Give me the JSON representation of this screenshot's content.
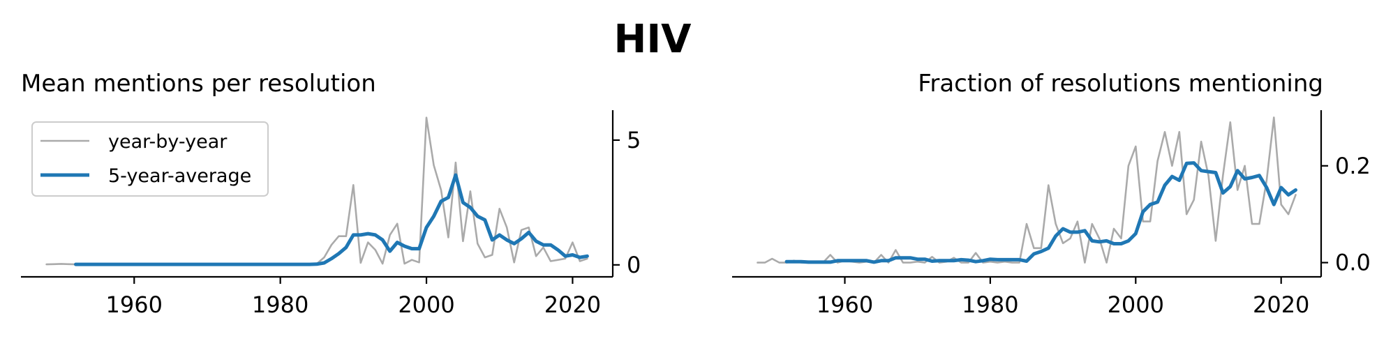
{
  "suptitle": "HIV",
  "colors": {
    "raw": "#aaaaaa",
    "avg": "#1f77b4"
  },
  "legend": {
    "raw_label": "year-by-year",
    "avg_label": "5-year-average",
    "placement": "upper-left"
  },
  "chart_data": [
    {
      "type": "line",
      "title": "Mean mentions per resolution",
      "xlabel": "",
      "ylabel": "",
      "xlim": [
        1944.5,
        2025.5
      ],
      "ylim": [
        -0.2,
        6.2
      ],
      "y_axis_side": "right",
      "xticks": [
        1960,
        1980,
        2000,
        2020
      ],
      "xtick_labels": [
        "1960",
        "1980",
        "2000",
        "2020"
      ],
      "yticks": [
        0,
        5
      ],
      "ytick_labels": [
        "0",
        "5"
      ],
      "series": [
        {
          "key": "raw",
          "name": "year-by-year",
          "x": [
            1948,
            1949,
            1950,
            1951,
            1952,
            1953,
            1954,
            1955,
            1956,
            1957,
            1958,
            1959,
            1960,
            1961,
            1962,
            1963,
            1964,
            1965,
            1966,
            1967,
            1968,
            1969,
            1970,
            1971,
            1972,
            1973,
            1974,
            1975,
            1976,
            1977,
            1978,
            1979,
            1980,
            1981,
            1982,
            1983,
            1984,
            1985,
            1986,
            1987,
            1988,
            1989,
            1990,
            1991,
            1992,
            1993,
            1994,
            1995,
            1996,
            1997,
            1998,
            1999,
            2000,
            2001,
            2002,
            2003,
            2004,
            2005,
            2006,
            2007,
            2008,
            2009,
            2010,
            2011,
            2012,
            2013,
            2014,
            2015,
            2016,
            2017,
            2018,
            2019,
            2020,
            2021,
            2022
          ],
          "y": [
            0.02,
            0.03,
            0.04,
            0.03,
            0.02,
            0.03,
            0.02,
            0.03,
            0.02,
            0.02,
            0.03,
            0.02,
            0.02,
            0.03,
            0.02,
            0.03,
            0.02,
            0.03,
            0.02,
            0.03,
            0.04,
            0.02,
            0.03,
            0.02,
            0.02,
            0.03,
            0.02,
            0.02,
            0.03,
            0.02,
            0.02,
            0.03,
            0.02,
            0.02,
            0.02,
            0.02,
            0.02,
            0.05,
            0.3,
            0.8,
            1.15,
            1.15,
            3.2,
            0.08,
            0.9,
            0.6,
            0.05,
            1.2,
            1.65,
            0.05,
            0.2,
            0.1,
            5.9,
            4.0,
            3.0,
            1.1,
            4.1,
            0.95,
            2.95,
            0.85,
            0.3,
            0.4,
            2.25,
            1.5,
            0.1,
            1.4,
            1.5,
            0.35,
            0.7,
            0.15,
            0.2,
            0.25,
            0.9,
            0.15,
            0.25
          ]
        },
        {
          "key": "avg",
          "name": "5-year-average",
          "x": [
            1952,
            1953,
            1954,
            1955,
            1956,
            1957,
            1958,
            1959,
            1960,
            1961,
            1962,
            1963,
            1964,
            1965,
            1966,
            1967,
            1968,
            1969,
            1970,
            1971,
            1972,
            1973,
            1974,
            1975,
            1976,
            1977,
            1978,
            1979,
            1980,
            1981,
            1982,
            1983,
            1984,
            1985,
            1986,
            1987,
            1988,
            1989,
            1990,
            1991,
            1992,
            1993,
            1994,
            1995,
            1996,
            1997,
            1998,
            1999,
            2000,
            2001,
            2002,
            2003,
            2004,
            2005,
            2006,
            2007,
            2008,
            2009,
            2010,
            2011,
            2012,
            2013,
            2014,
            2015,
            2016,
            2017,
            2018,
            2019,
            2020,
            2021,
            2022
          ],
          "y": [
            0.02,
            0.02,
            0.02,
            0.02,
            0.02,
            0.02,
            0.02,
            0.02,
            0.02,
            0.02,
            0.02,
            0.02,
            0.02,
            0.02,
            0.02,
            0.02,
            0.02,
            0.02,
            0.02,
            0.02,
            0.02,
            0.02,
            0.02,
            0.02,
            0.02,
            0.02,
            0.02,
            0.02,
            0.02,
            0.02,
            0.02,
            0.02,
            0.02,
            0.03,
            0.08,
            0.25,
            0.45,
            0.7,
            1.2,
            1.2,
            1.25,
            1.2,
            1.0,
            0.55,
            0.9,
            0.75,
            0.65,
            0.65,
            1.5,
            1.95,
            2.55,
            2.7,
            3.6,
            2.5,
            2.3,
            1.95,
            1.8,
            1.0,
            1.2,
            1.0,
            0.85,
            1.05,
            1.3,
            0.95,
            0.8,
            0.8,
            0.6,
            0.35,
            0.4,
            0.3,
            0.35
          ]
        }
      ]
    },
    {
      "type": "line",
      "title": "Fraction of resolutions mentioning",
      "xlabel": "",
      "ylabel": "",
      "xlim": [
        1944.5,
        2025.5
      ],
      "ylim": [
        -0.015,
        0.315
      ],
      "y_axis_side": "right",
      "xticks": [
        1960,
        1980,
        2000,
        2020
      ],
      "xtick_labels": [
        "1960",
        "1980",
        "2000",
        "2020"
      ],
      "yticks": [
        0.0,
        0.2
      ],
      "ytick_labels": [
        "0.0",
        "0.2"
      ],
      "series": [
        {
          "key": "raw",
          "name": "year-by-year",
          "x": [
            1948,
            1949,
            1950,
            1951,
            1952,
            1953,
            1954,
            1955,
            1956,
            1957,
            1958,
            1959,
            1960,
            1961,
            1962,
            1963,
            1964,
            1965,
            1966,
            1967,
            1968,
            1969,
            1970,
            1971,
            1972,
            1973,
            1974,
            1975,
            1976,
            1977,
            1978,
            1979,
            1980,
            1981,
            1982,
            1983,
            1984,
            1985,
            1986,
            1987,
            1988,
            1989,
            1990,
            1991,
            1992,
            1993,
            1994,
            1995,
            1996,
            1997,
            1998,
            1999,
            2000,
            2001,
            2002,
            2003,
            2004,
            2005,
            2006,
            2007,
            2008,
            2009,
            2010,
            2011,
            2012,
            2013,
            2014,
            2015,
            2016,
            2017,
            2018,
            2019,
            2020,
            2021,
            2022
          ],
          "y": [
            0.0,
            0.0,
            0.008,
            0.0,
            0.0,
            0.004,
            0.0,
            0.0,
            0.002,
            0.0,
            0.016,
            0.0,
            0.004,
            0.002,
            0.0,
            0.002,
            0.0,
            0.016,
            0.0,
            0.026,
            0.0,
            0.0,
            0.002,
            0.0,
            0.012,
            0.0,
            0.002,
            0.01,
            0.0,
            0.0,
            0.02,
            0.0,
            0.002,
            0.0,
            0.002,
            0.0,
            0.0,
            0.08,
            0.03,
            0.03,
            0.16,
            0.08,
            0.04,
            0.05,
            0.085,
            0.0,
            0.08,
            0.05,
            0.0,
            0.07,
            0.05,
            0.2,
            0.24,
            0.085,
            0.085,
            0.21,
            0.27,
            0.2,
            0.27,
            0.1,
            0.13,
            0.25,
            0.18,
            0.045,
            0.18,
            0.29,
            0.15,
            0.2,
            0.08,
            0.08,
            0.17,
            0.3,
            0.12,
            0.1,
            0.14
          ]
        },
        {
          "key": "avg",
          "name": "5-year-average",
          "x": [
            1952,
            1953,
            1954,
            1955,
            1956,
            1957,
            1958,
            1959,
            1960,
            1961,
            1962,
            1963,
            1964,
            1965,
            1966,
            1967,
            1968,
            1969,
            1970,
            1971,
            1972,
            1973,
            1974,
            1975,
            1976,
            1977,
            1978,
            1979,
            1980,
            1981,
            1982,
            1983,
            1984,
            1985,
            1986,
            1987,
            1988,
            1989,
            1990,
            1991,
            1992,
            1993,
            1994,
            1995,
            1996,
            1997,
            1998,
            1999,
            2000,
            2001,
            2002,
            2003,
            2004,
            2005,
            2006,
            2007,
            2008,
            2009,
            2010,
            2011,
            2012,
            2013,
            2014,
            2015,
            2016,
            2017,
            2018,
            2019,
            2020,
            2021,
            2022
          ],
          "y": [
            0.002,
            0.002,
            0.002,
            0.001,
            0.001,
            0.001,
            0.001,
            0.004,
            0.004,
            0.004,
            0.004,
            0.004,
            0.001,
            0.004,
            0.004,
            0.01,
            0.01,
            0.01,
            0.007,
            0.007,
            0.003,
            0.004,
            0.004,
            0.004,
            0.006,
            0.005,
            0.002,
            0.004,
            0.007,
            0.006,
            0.006,
            0.006,
            0.006,
            0.003,
            0.018,
            0.023,
            0.03,
            0.055,
            0.07,
            0.063,
            0.063,
            0.066,
            0.045,
            0.043,
            0.045,
            0.039,
            0.039,
            0.045,
            0.06,
            0.105,
            0.12,
            0.125,
            0.16,
            0.178,
            0.17,
            0.205,
            0.206,
            0.19,
            0.188,
            0.186,
            0.144,
            0.157,
            0.19,
            0.173,
            0.176,
            0.18,
            0.155,
            0.12,
            0.155,
            0.14,
            0.15
          ]
        }
      ]
    }
  ]
}
